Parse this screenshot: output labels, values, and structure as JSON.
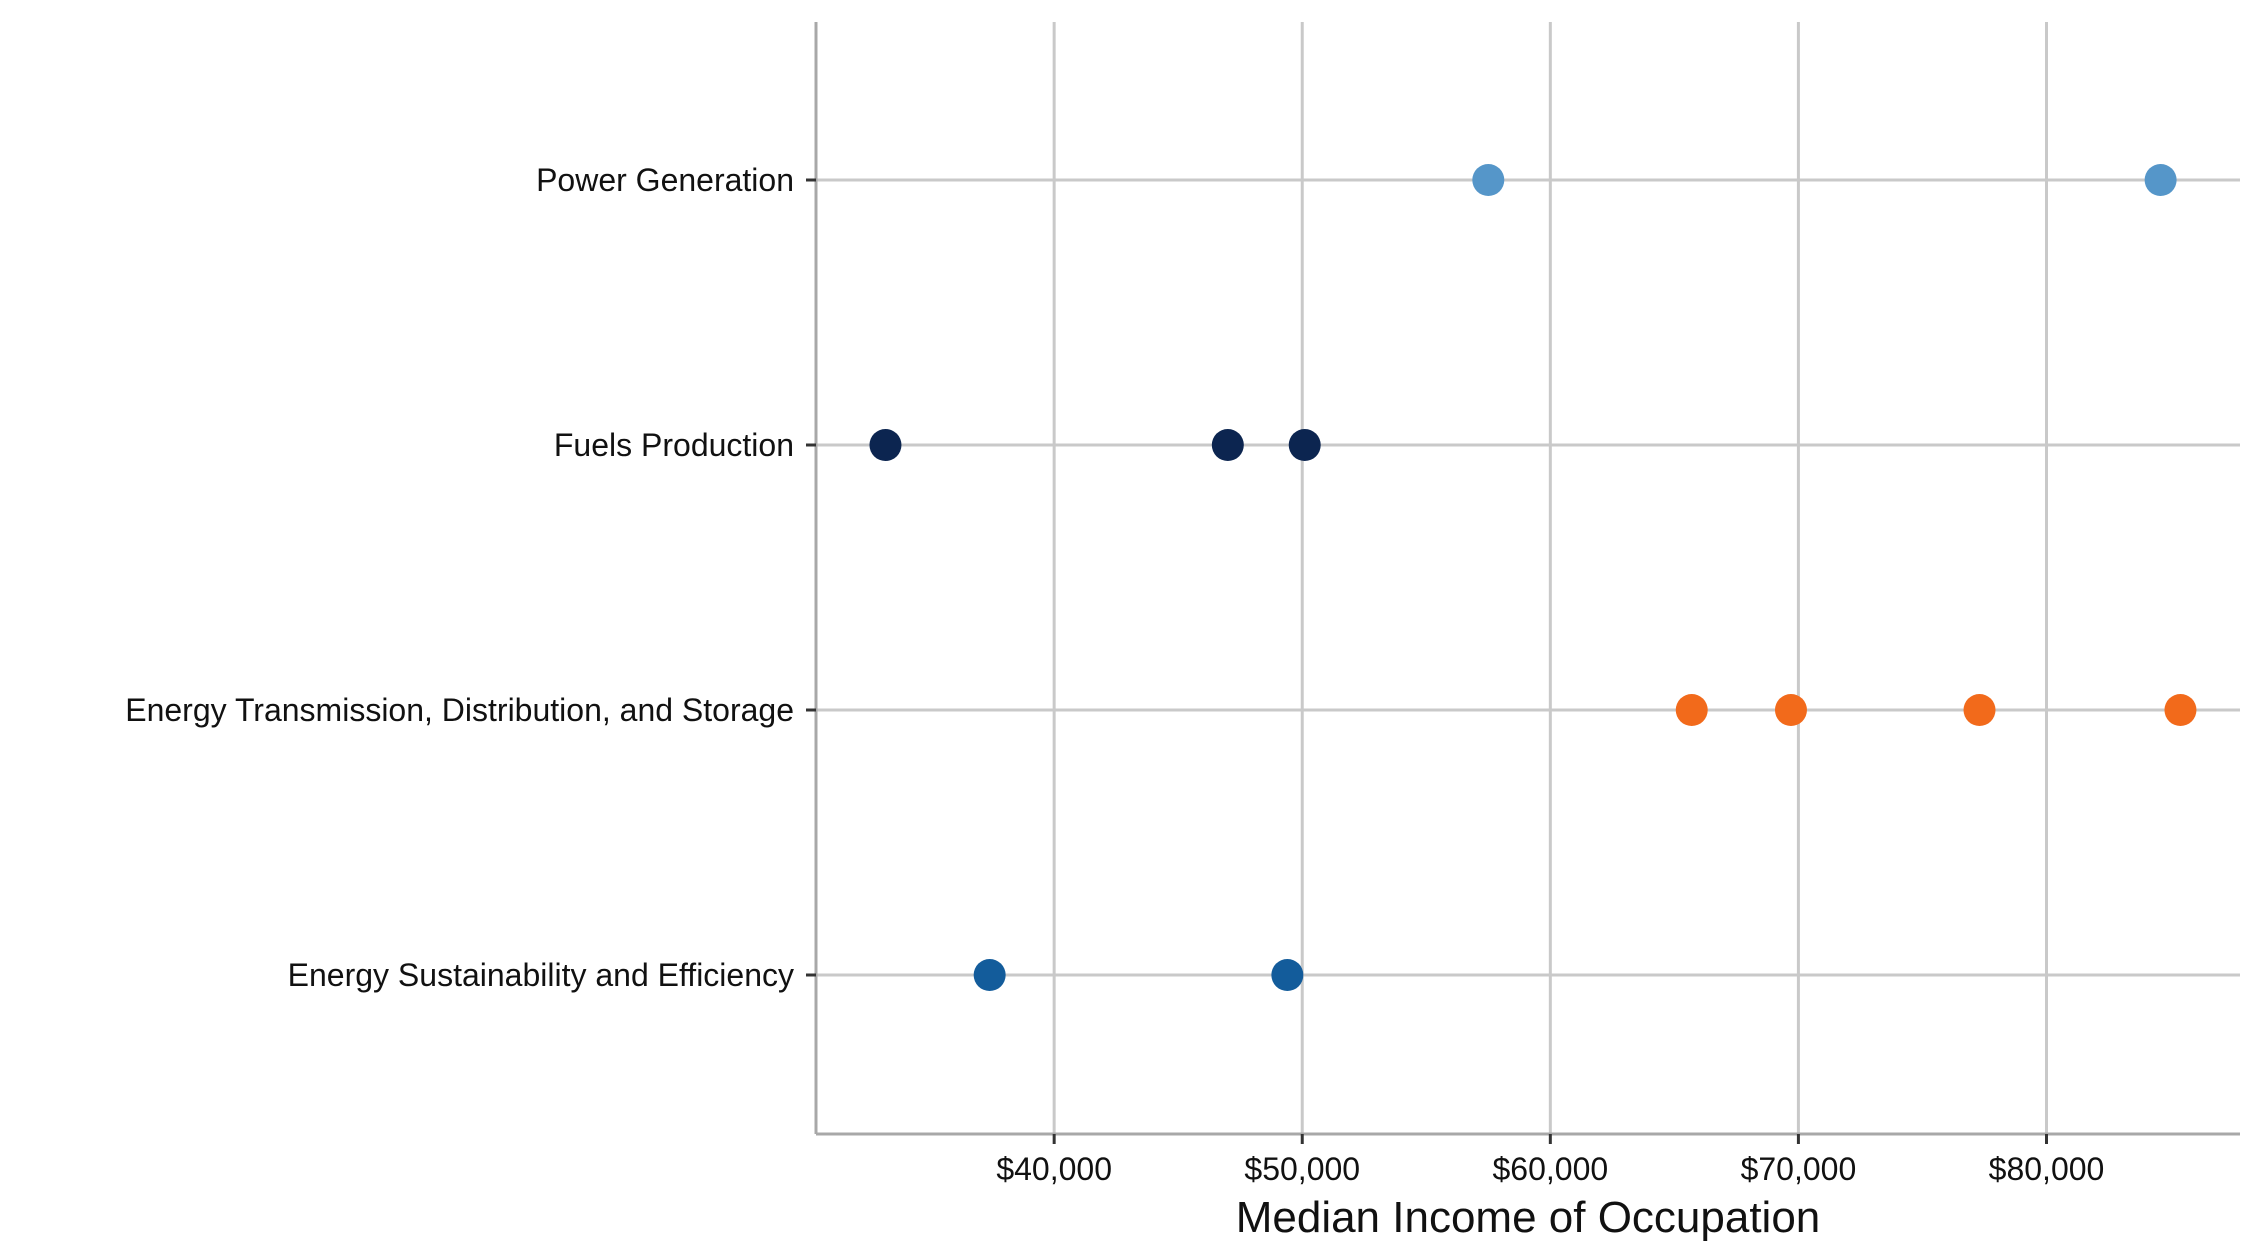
{
  "chart_data": {
    "type": "scatter",
    "title": "",
    "xlabel": "Median Income of Occupation",
    "ylabel": "",
    "xlim": [
      30400,
      87800
    ],
    "x_ticks": [
      40000,
      50000,
      60000,
      70000,
      80000
    ],
    "x_tick_labels": [
      "$40,000",
      "$50,000",
      "$60,000",
      "$70,000",
      "$80,000"
    ],
    "grid": true,
    "legend": "none",
    "categories": [
      "Power Generation",
      "Fuels Production",
      "Energy Transmission, Distribution, and Storage",
      "Energy Sustainability and Efficiency"
    ],
    "series": [
      {
        "category": "Power Generation",
        "color": "#5596c9",
        "values": [
          57500,
          84600
        ]
      },
      {
        "category": "Fuels Production",
        "color": "#0c2550",
        "values": [
          33200,
          47000,
          50100
        ]
      },
      {
        "category": "Energy Transmission, Distribution, and Storage",
        "color": "#f26a1b",
        "values": [
          65700,
          69700,
          77300,
          85400
        ]
      },
      {
        "category": "Energy Sustainability and Efficiency",
        "color": "#135c9b",
        "values": [
          37400,
          49400
        ]
      }
    ]
  }
}
